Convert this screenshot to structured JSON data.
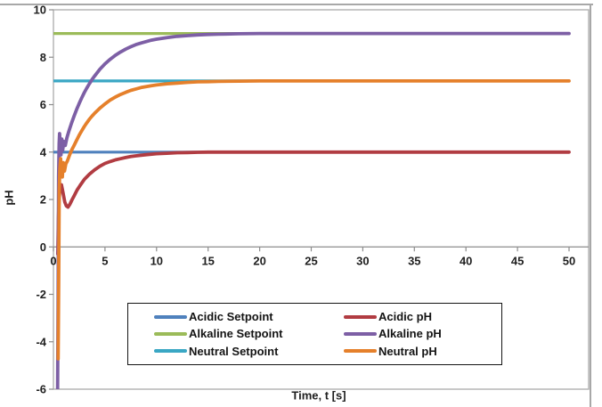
{
  "legend": {
    "items": [
      {
        "label": "Acidic Setpoint",
        "color": "#4F81BD"
      },
      {
        "label": "Acidic pH",
        "color": "#B13C42"
      },
      {
        "label": "Alkaline Setpoint",
        "color": "#9BBB59"
      },
      {
        "label": "Alkaline pH",
        "color": "#7D5FA5"
      },
      {
        "label": "Neutral Setpoint",
        "color": "#3AA7C4"
      },
      {
        "label": "Neutral pH",
        "color": "#E5802B"
      }
    ]
  },
  "chart_data": {
    "type": "line",
    "title": "",
    "xlabel": "Time, t [s]",
    "ylabel": "pH",
    "xlim": [
      0,
      51.9
    ],
    "ylim": [
      -6,
      10
    ],
    "x_ticks": [
      0,
      5,
      10,
      15,
      20,
      25,
      30,
      35,
      40,
      45,
      50
    ],
    "y_ticks": [
      10,
      8,
      6,
      4,
      2,
      0,
      -2,
      -4,
      -6
    ],
    "grid": false,
    "legend_position": "bottom-center-box",
    "series": [
      {
        "id": "acidic-setpoint",
        "name": "Acidic Setpoint",
        "color": "#4F81BD",
        "width": 3.2,
        "points": [
          [
            0,
            4
          ],
          [
            50,
            4
          ]
        ]
      },
      {
        "id": "alkaline-setpoint",
        "name": "Alkaline Setpoint",
        "color": "#9BBB59",
        "width": 3.2,
        "points": [
          [
            0,
            9
          ],
          [
            50,
            9
          ]
        ]
      },
      {
        "id": "neutral-setpoint",
        "name": "Neutral Setpoint",
        "color": "#3AA7C4",
        "width": 3.2,
        "points": [
          [
            0,
            7
          ],
          [
            50,
            7
          ]
        ]
      },
      {
        "id": "acidic-ph",
        "name": "Acidic pH",
        "color": "#B13C42",
        "width": 3.8,
        "points": [
          [
            0.42,
            -0.3
          ],
          [
            0.48,
            1.2
          ],
          [
            0.55,
            2.05
          ],
          [
            0.65,
            2.5
          ],
          [
            0.78,
            2.62
          ],
          [
            0.92,
            2.3
          ],
          [
            1.1,
            1.9
          ],
          [
            1.25,
            1.73
          ],
          [
            1.42,
            1.68
          ],
          [
            1.6,
            1.8
          ],
          [
            1.8,
            1.98
          ],
          [
            2,
            2.15
          ],
          [
            2.3,
            2.4
          ],
          [
            2.6,
            2.6
          ],
          [
            3,
            2.85
          ],
          [
            3.5,
            3.07
          ],
          [
            4,
            3.25
          ],
          [
            4.5,
            3.4
          ],
          [
            5,
            3.52
          ],
          [
            5.5,
            3.6
          ],
          [
            6,
            3.67
          ],
          [
            6.5,
            3.72
          ],
          [
            7,
            3.77
          ],
          [
            7.5,
            3.81
          ],
          [
            8,
            3.84
          ],
          [
            9,
            3.89
          ],
          [
            10,
            3.93
          ],
          [
            11,
            3.95
          ],
          [
            12,
            3.97
          ],
          [
            13,
            3.98
          ],
          [
            14,
            3.99
          ],
          [
            15,
            4
          ],
          [
            17,
            4
          ],
          [
            20,
            4
          ],
          [
            25,
            4
          ],
          [
            30,
            4
          ],
          [
            35,
            4
          ],
          [
            40,
            4
          ],
          [
            45,
            4
          ],
          [
            50,
            4
          ]
        ]
      },
      {
        "id": "alkaline-ph",
        "name": "Alkaline pH",
        "color": "#7D5FA5",
        "width": 3.8,
        "points": [
          [
            0.4,
            -6.5
          ],
          [
            0.45,
            -2.5
          ],
          [
            0.5,
            3.0
          ],
          [
            0.55,
            4.35
          ],
          [
            0.6,
            4.78
          ],
          [
            0.67,
            4.25
          ],
          [
            0.73,
            3.88
          ],
          [
            0.81,
            4.55
          ],
          [
            0.9,
            4.08
          ],
          [
            1.0,
            4.45
          ],
          [
            1.15,
            4.28
          ],
          [
            1.3,
            4.6
          ],
          [
            1.5,
            4.89
          ],
          [
            1.75,
            5.22
          ],
          [
            2,
            5.52
          ],
          [
            2.25,
            5.8
          ],
          [
            2.5,
            6.05
          ],
          [
            2.75,
            6.29
          ],
          [
            3,
            6.51
          ],
          [
            3.25,
            6.71
          ],
          [
            3.5,
            6.89
          ],
          [
            3.75,
            7.06
          ],
          [
            4,
            7.21
          ],
          [
            4.5,
            7.49
          ],
          [
            5,
            7.72
          ],
          [
            5.5,
            7.91
          ],
          [
            6,
            8.08
          ],
          [
            6.5,
            8.22
          ],
          [
            7,
            8.34
          ],
          [
            7.5,
            8.44
          ],
          [
            8,
            8.53
          ],
          [
            8.5,
            8.6
          ],
          [
            9,
            8.66
          ],
          [
            9.5,
            8.72
          ],
          [
            10,
            8.76
          ],
          [
            11,
            8.83
          ],
          [
            12,
            8.88
          ],
          [
            13,
            8.91
          ],
          [
            14,
            8.94
          ],
          [
            15,
            8.96
          ],
          [
            16,
            8.97
          ],
          [
            18,
            8.99
          ],
          [
            20,
            9
          ],
          [
            25,
            9
          ],
          [
            30,
            9
          ],
          [
            35,
            9
          ],
          [
            40,
            9
          ],
          [
            45,
            9
          ],
          [
            50,
            9
          ]
        ]
      },
      {
        "id": "neutral-ph",
        "name": "Neutral pH",
        "color": "#E5802B",
        "width": 3.8,
        "points": [
          [
            0.46,
            -4.72
          ],
          [
            0.51,
            -1.5
          ],
          [
            0.56,
            2.4
          ],
          [
            0.62,
            3.3
          ],
          [
            0.7,
            3.72
          ],
          [
            0.78,
            3.2
          ],
          [
            0.86,
            2.95
          ],
          [
            0.96,
            3.55
          ],
          [
            1.07,
            3.2
          ],
          [
            1.2,
            3.5
          ],
          [
            1.35,
            3.62
          ],
          [
            1.55,
            3.85
          ],
          [
            1.75,
            4.07
          ],
          [
            2,
            4.28
          ],
          [
            2.25,
            4.5
          ],
          [
            2.5,
            4.71
          ],
          [
            2.75,
            4.9
          ],
          [
            3,
            5.08
          ],
          [
            3.25,
            5.24
          ],
          [
            3.5,
            5.39
          ],
          [
            3.75,
            5.52
          ],
          [
            4,
            5.64
          ],
          [
            4.5,
            5.85
          ],
          [
            5,
            6.03
          ],
          [
            5.5,
            6.19
          ],
          [
            6,
            6.32
          ],
          [
            6.5,
            6.43
          ],
          [
            7,
            6.52
          ],
          [
            7.5,
            6.6
          ],
          [
            8,
            6.66
          ],
          [
            8.5,
            6.72
          ],
          [
            9,
            6.76
          ],
          [
            9.5,
            6.8
          ],
          [
            10,
            6.83
          ],
          [
            11,
            6.88
          ],
          [
            12,
            6.91
          ],
          [
            13,
            6.94
          ],
          [
            14,
            6.96
          ],
          [
            15,
            6.97
          ],
          [
            16,
            6.98
          ],
          [
            18,
            6.99
          ],
          [
            20,
            7
          ],
          [
            25,
            7
          ],
          [
            30,
            7
          ],
          [
            35,
            7
          ],
          [
            40,
            7
          ],
          [
            45,
            7
          ],
          [
            50,
            7
          ]
        ]
      }
    ]
  }
}
